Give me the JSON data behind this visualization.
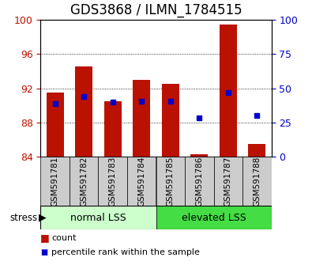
{
  "title": "GDS3868 / ILMN_1784515",
  "categories": [
    "GSM591781",
    "GSM591782",
    "GSM591783",
    "GSM591784",
    "GSM591785",
    "GSM591786",
    "GSM591787",
    "GSM591788"
  ],
  "red_bar_tops": [
    91.5,
    94.5,
    90.5,
    93.0,
    92.5,
    84.3,
    99.4,
    85.5
  ],
  "blue_dot_y": [
    90.2,
    91.0,
    90.4,
    90.5,
    90.5,
    88.5,
    91.5,
    88.8
  ],
  "bar_base": 84.0,
  "ylim_left": [
    84,
    100
  ],
  "ylim_right": [
    0,
    100
  ],
  "yticks_left": [
    84,
    88,
    92,
    96,
    100
  ],
  "yticks_right": [
    0,
    25,
    50,
    75,
    100
  ],
  "group1_label": "normal LSS",
  "group2_label": "elevated LSS",
  "group1_indices": [
    0,
    1,
    2,
    3
  ],
  "group2_indices": [
    4,
    5,
    6,
    7
  ],
  "stress_label": "stress",
  "legend_red": "count",
  "legend_blue": "percentile rank within the sample",
  "bar_color": "#bb1100",
  "blue_color": "#0000cc",
  "group1_bg": "#ccffcc",
  "group2_bg": "#44dd44",
  "tick_bg": "#cccccc",
  "title_fontsize": 12,
  "tick_fontsize": 9
}
